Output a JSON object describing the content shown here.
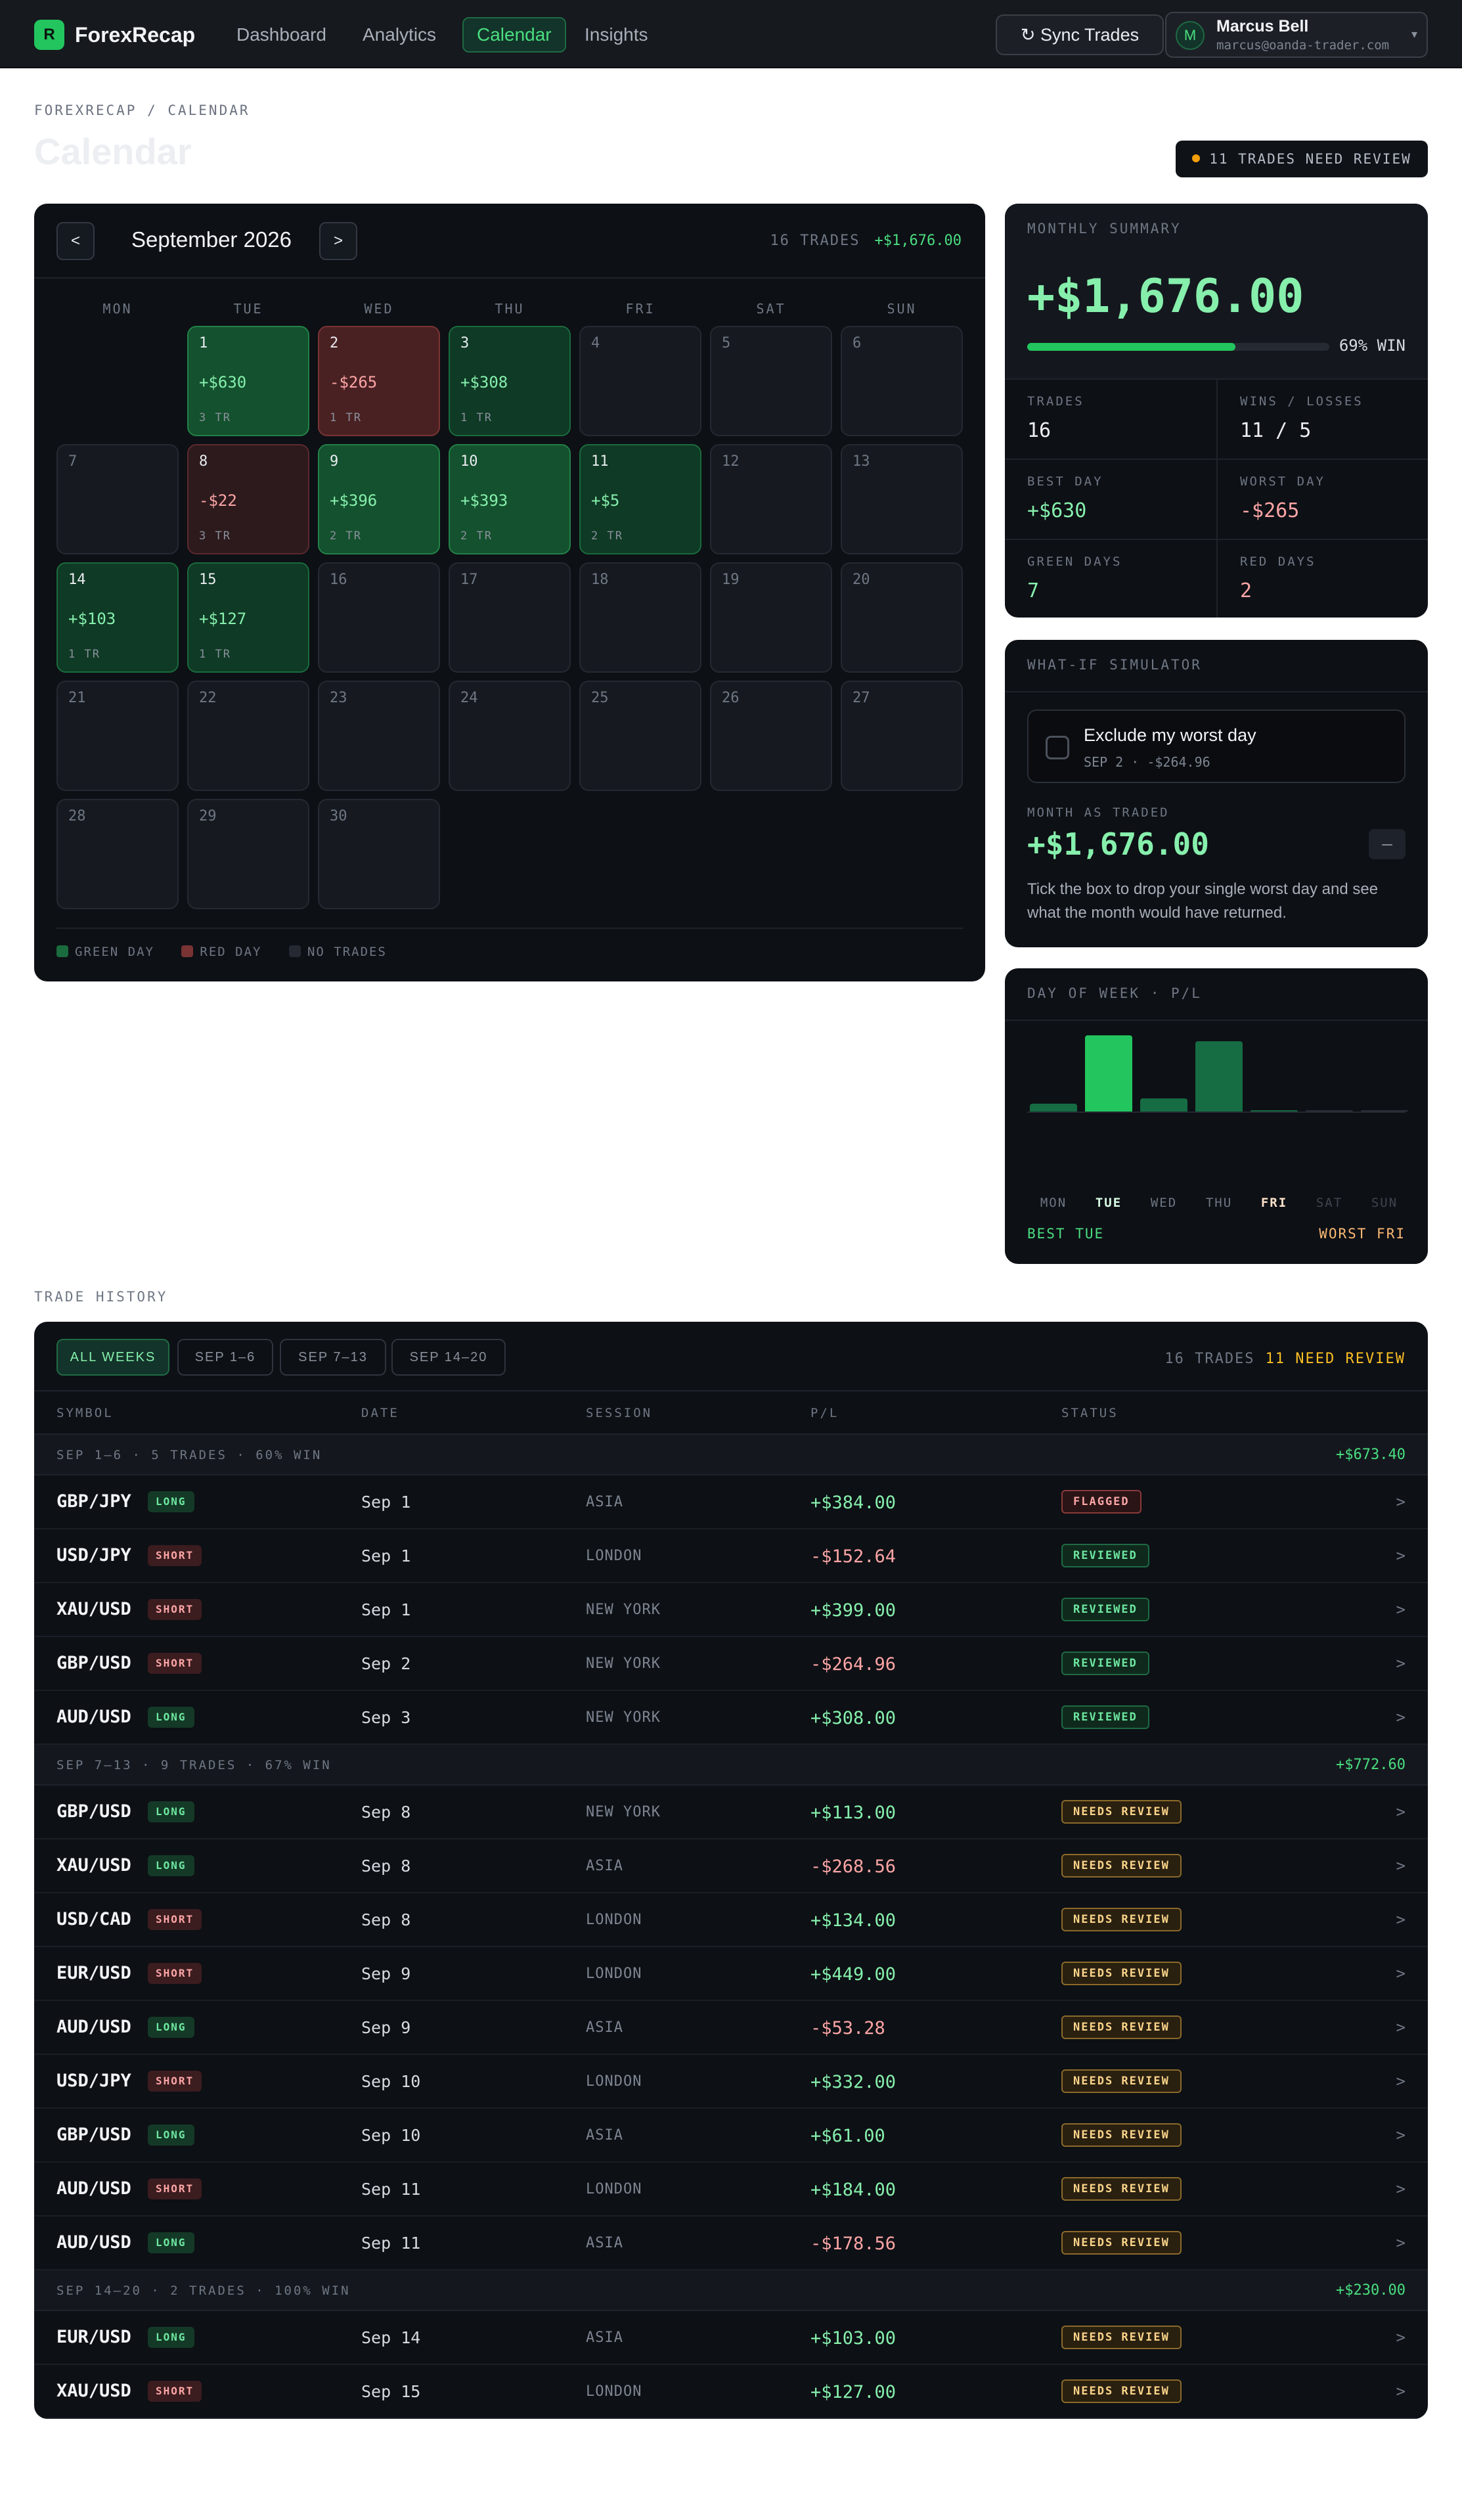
{
  "nav": {
    "logo_letter": "R",
    "logo_text": "ForexRecap",
    "links": [
      "Dashboard",
      "Analytics",
      "Calendar",
      "Insights"
    ],
    "active_link": "Calendar",
    "sync_label": "↻ Sync Trades",
    "user": {
      "initial": "M",
      "name": "Marcus Bell",
      "email": "marcus@oanda-trader.com"
    }
  },
  "header": {
    "breadcrumb": "FOREXRECAP / CALENDAR",
    "title": "Calendar",
    "review_pill": "11 TRADES NEED REVIEW"
  },
  "calendar": {
    "prev_label": "<",
    "next_label": ">",
    "month": "September 2026",
    "trades_count": "16 TRADES",
    "total_pl": "+$1,676.00",
    "weekdays": [
      "MON",
      "TUE",
      "WED",
      "THU",
      "FRI",
      "SAT",
      "SUN"
    ],
    "days": [
      {
        "num": "1",
        "pl": "+$630",
        "trades": "3 TR",
        "tone": "green"
      },
      {
        "num": "2",
        "pl": "-$265",
        "trades": "1 TR",
        "tone": "red"
      },
      {
        "num": "3",
        "pl": "+$308",
        "trades": "1 TR",
        "tone": "greenlt"
      },
      {
        "num": "4",
        "tone": "none"
      },
      {
        "num": "5",
        "tone": "none"
      },
      {
        "num": "6",
        "tone": "none"
      },
      {
        "num": "7",
        "tone": "none"
      },
      {
        "num": "8",
        "pl": "-$22",
        "trades": "3 TR",
        "tone": "redlt"
      },
      {
        "num": "9",
        "pl": "+$396",
        "trades": "2 TR",
        "tone": "green"
      },
      {
        "num": "10",
        "pl": "+$393",
        "trades": "2 TR",
        "tone": "green"
      },
      {
        "num": "11",
        "pl": "+$5",
        "trades": "2 TR",
        "tone": "greenlt"
      },
      {
        "num": "12",
        "tone": "none"
      },
      {
        "num": "13",
        "tone": "none"
      },
      {
        "num": "14",
        "pl": "+$103",
        "trades": "1 TR",
        "tone": "greenlt"
      },
      {
        "num": "15",
        "pl": "+$127",
        "trades": "1 TR",
        "tone": "greenlt"
      },
      {
        "num": "16",
        "tone": "none"
      },
      {
        "num": "17",
        "tone": "none"
      },
      {
        "num": "18",
        "tone": "none"
      },
      {
        "num": "19",
        "tone": "none"
      },
      {
        "num": "20",
        "tone": "none"
      },
      {
        "num": "21",
        "tone": "none"
      },
      {
        "num": "22",
        "tone": "none"
      },
      {
        "num": "23",
        "tone": "none"
      },
      {
        "num": "24",
        "tone": "none"
      },
      {
        "num": "25",
        "tone": "none"
      },
      {
        "num": "26",
        "tone": "none"
      },
      {
        "num": "27",
        "tone": "none"
      },
      {
        "num": "28",
        "tone": "none"
      },
      {
        "num": "29",
        "tone": "none"
      },
      {
        "num": "30",
        "tone": "none"
      }
    ],
    "legend": [
      "GREEN DAY",
      "RED DAY",
      "NO TRADES"
    ],
    "colors": {
      "green": "#14512e",
      "red": "#4a2123",
      "none": "#161a20"
    }
  },
  "summary": {
    "label": "MONTHLY SUMMARY",
    "amount": "+$1,676.00",
    "win_rate": 0.69,
    "win_label": "69% WIN",
    "stats": [
      {
        "label": "TRADES",
        "value": "16",
        "tone": ""
      },
      {
        "label": "WINS / LOSSES",
        "value": "11 / 5",
        "tone": ""
      },
      {
        "label": "BEST DAY",
        "value": "+$630",
        "tone": "pos"
      },
      {
        "label": "WORST DAY",
        "value": "-$265",
        "tone": "neg"
      },
      {
        "label": "GREEN DAYS",
        "value": "7",
        "tone": "pos"
      },
      {
        "label": "RED DAYS",
        "value": "2",
        "tone": "neg"
      }
    ]
  },
  "whatif": {
    "label": "WHAT-IF SIMULATOR",
    "toggle_title": "Exclude my worst day",
    "toggle_sub": "SEP 2 · -$264.96",
    "result_label": "MONTH AS TRADED",
    "result_amount": "+$1,676.00",
    "minus_label": "–",
    "note": "Tick the box to drop your single worst day and see what the month would have returned."
  },
  "dow_chart": {
    "label": "DAY OF WEEK · P/L",
    "best_text": "BEST TUE",
    "worst_text": "WORST FRI",
    "chart_data": {
      "type": "bar",
      "categories": [
        "MON",
        "TUE",
        "WED",
        "THU",
        "FRI",
        "SAT",
        "SUN"
      ],
      "values": [
        81,
        757,
        131,
        701,
        5,
        0,
        0
      ],
      "best": "TUE",
      "worst": "FRI"
    }
  },
  "history": {
    "section_label": "TRADE HISTORY",
    "chips": [
      "ALL WEEKS",
      "SEP 1–6",
      "SEP 7–13",
      "SEP 14–20"
    ],
    "active_chip": "ALL WEEKS",
    "trade_count": "16 TRADES",
    "need_review": "11 NEED REVIEW",
    "columns": [
      "SYMBOL",
      "DATE",
      "SESSION",
      "P/L",
      "STATUS"
    ],
    "groups": [
      {
        "label": "SEP 1–6 · 5 TRADES · 60% WIN",
        "pl": "+$673.40",
        "rows": [
          {
            "symbol": "GBP/JPY",
            "dir": "LONG",
            "date": "Sep 1",
            "session": "ASIA",
            "pl": "+$384.00",
            "status": "FLAGGED"
          },
          {
            "symbol": "USD/JPY",
            "dir": "SHORT",
            "date": "Sep 1",
            "session": "LONDON",
            "pl": "-$152.64",
            "status": "REVIEWED"
          },
          {
            "symbol": "XAU/USD",
            "dir": "SHORT",
            "date": "Sep 1",
            "session": "NEW YORK",
            "pl": "+$399.00",
            "status": "REVIEWED"
          },
          {
            "symbol": "GBP/USD",
            "dir": "SHORT",
            "date": "Sep 2",
            "session": "NEW YORK",
            "pl": "-$264.96",
            "status": "REVIEWED"
          },
          {
            "symbol": "AUD/USD",
            "dir": "LONG",
            "date": "Sep 3",
            "session": "NEW YORK",
            "pl": "+$308.00",
            "status": "REVIEWED"
          }
        ]
      },
      {
        "label": "SEP 7–13 · 9 TRADES · 67% WIN",
        "pl": "+$772.60",
        "rows": [
          {
            "symbol": "GBP/USD",
            "dir": "LONG",
            "date": "Sep 8",
            "session": "NEW YORK",
            "pl": "+$113.00",
            "status": "NEEDS REVIEW"
          },
          {
            "symbol": "XAU/USD",
            "dir": "LONG",
            "date": "Sep 8",
            "session": "ASIA",
            "pl": "-$268.56",
            "status": "NEEDS REVIEW"
          },
          {
            "symbol": "USD/CAD",
            "dir": "SHORT",
            "date": "Sep 8",
            "session": "LONDON",
            "pl": "+$134.00",
            "status": "NEEDS REVIEW"
          },
          {
            "symbol": "EUR/USD",
            "dir": "SHORT",
            "date": "Sep 9",
            "session": "LONDON",
            "pl": "+$449.00",
            "status": "NEEDS REVIEW"
          },
          {
            "symbol": "AUD/USD",
            "dir": "LONG",
            "date": "Sep 9",
            "session": "ASIA",
            "pl": "-$53.28",
            "status": "NEEDS REVIEW"
          },
          {
            "symbol": "USD/JPY",
            "dir": "SHORT",
            "date": "Sep 10",
            "session": "LONDON",
            "pl": "+$332.00",
            "status": "NEEDS REVIEW"
          },
          {
            "symbol": "GBP/USD",
            "dir": "LONG",
            "date": "Sep 10",
            "session": "ASIA",
            "pl": "+$61.00",
            "status": "NEEDS REVIEW"
          },
          {
            "symbol": "AUD/USD",
            "dir": "SHORT",
            "date": "Sep 11",
            "session": "LONDON",
            "pl": "+$184.00",
            "status": "NEEDS REVIEW"
          },
          {
            "symbol": "AUD/USD",
            "dir": "LONG",
            "date": "Sep 11",
            "session": "ASIA",
            "pl": "-$178.56",
            "status": "NEEDS REVIEW"
          }
        ]
      },
      {
        "label": "SEP 14–20 · 2 TRADES · 100% WIN",
        "pl": "+$230.00",
        "rows": [
          {
            "symbol": "EUR/USD",
            "dir": "LONG",
            "date": "Sep 14",
            "session": "ASIA",
            "pl": "+$103.00",
            "status": "NEEDS REVIEW"
          },
          {
            "symbol": "XAU/USD",
            "dir": "SHORT",
            "date": "Sep 15",
            "session": "LONDON",
            "pl": "+$127.00",
            "status": "NEEDS REVIEW"
          }
        ]
      }
    ],
    "chevron": ">"
  }
}
